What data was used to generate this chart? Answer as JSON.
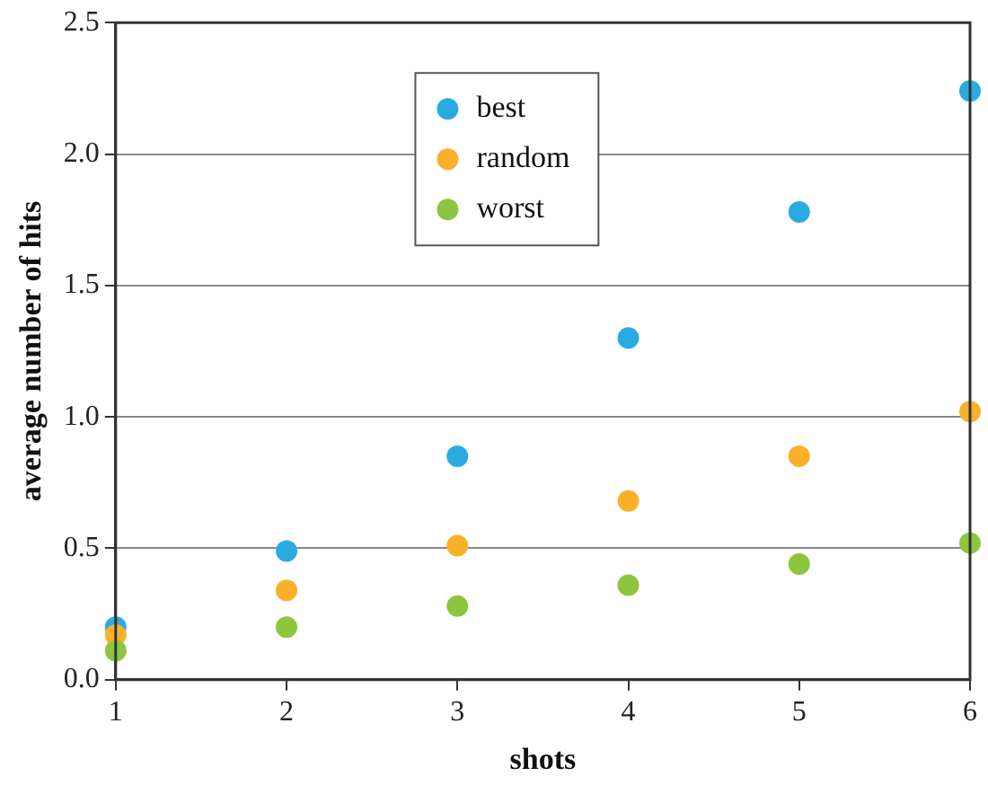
{
  "chart_data": {
    "type": "scatter",
    "xlabel": "shots",
    "ylabel": "average number of hits",
    "x": [
      1,
      2,
      3,
      4,
      5,
      6
    ],
    "series": [
      {
        "name": "best",
        "color": "#29abe2",
        "values": [
          0.2,
          0.49,
          0.85,
          1.3,
          1.78,
          2.24
        ]
      },
      {
        "name": "random",
        "color": "#fbb02a",
        "values": [
          0.17,
          0.34,
          0.51,
          0.68,
          0.85,
          1.02
        ]
      },
      {
        "name": "worst",
        "color": "#8cc63f",
        "values": [
          0.11,
          0.2,
          0.28,
          0.36,
          0.44,
          0.52
        ]
      }
    ],
    "xlim": [
      1,
      6
    ],
    "xticks": [
      1,
      2,
      3,
      4,
      5,
      6
    ],
    "ylim": [
      0,
      2.5
    ],
    "yticks": [
      {
        "value": 0,
        "label": "0.0"
      },
      {
        "value": 0.5,
        "label": "0.5"
      },
      {
        "value": 1,
        "label": "1.0"
      },
      {
        "value": 1.5,
        "label": "1.5"
      },
      {
        "value": 2,
        "label": "2.0"
      },
      {
        "value": 2.5,
        "label": "2.5"
      }
    ],
    "grid": "y",
    "legend": "top",
    "marker": "circle"
  }
}
